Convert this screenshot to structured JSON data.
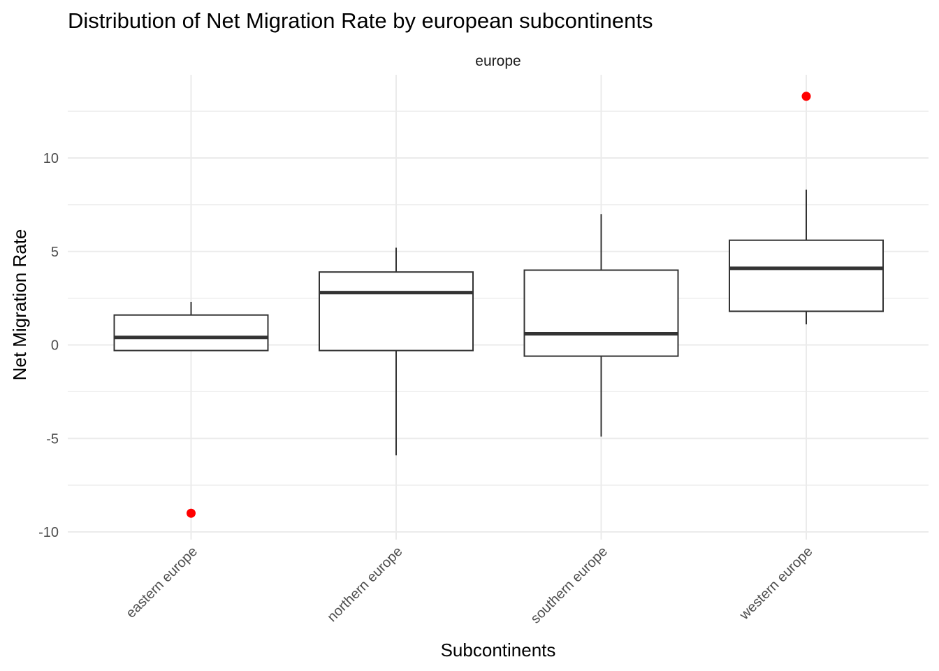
{
  "chart_data": {
    "type": "boxplot",
    "title": "Distribution of Net Migration Rate by european subcontinents",
    "facet_label": "europe",
    "xlabel": "Subcontinents",
    "ylabel": "Net Migration Rate",
    "ylim": [
      -10.5,
      14.2
    ],
    "y_ticks": [
      -10,
      -5,
      0,
      5,
      10
    ],
    "y_tick_labels": [
      "-10",
      "-5",
      "0",
      "5",
      "10"
    ],
    "grid": true,
    "legend": "none",
    "categories": [
      "eastern europe",
      "northern europe",
      "southern europe",
      "western europe"
    ],
    "boxes": [
      {
        "category": "eastern europe",
        "whisker_low": -0.3,
        "q1": -0.3,
        "median": 0.4,
        "q3": 1.6,
        "whisker_high": 2.3,
        "outliers": [
          -9.0
        ]
      },
      {
        "category": "northern europe",
        "whisker_low": -5.9,
        "q1": -0.3,
        "median": 2.8,
        "q3": 3.9,
        "whisker_high": 5.2,
        "outliers": []
      },
      {
        "category": "southern europe",
        "whisker_low": -4.9,
        "q1": -0.6,
        "median": 0.6,
        "q3": 4.0,
        "whisker_high": 7.0,
        "outliers": []
      },
      {
        "category": "western europe",
        "whisker_low": 1.1,
        "q1": 1.8,
        "median": 4.1,
        "q3": 5.6,
        "whisker_high": 8.3,
        "outliers": [
          13.3
        ]
      }
    ],
    "colors": {
      "box_line": "#333333",
      "box_fill": "#ffffff",
      "outlier": "#ff0000",
      "grid": "#ebebeb"
    }
  }
}
